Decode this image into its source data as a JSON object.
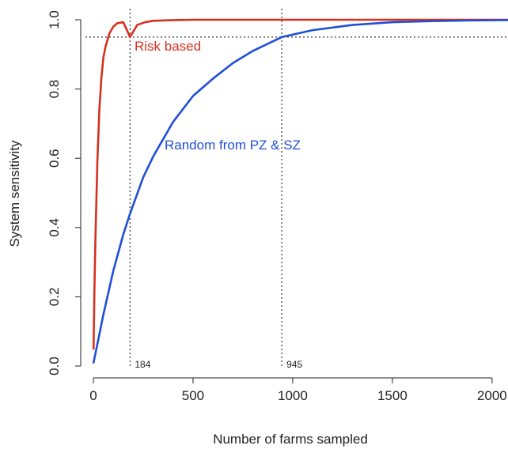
{
  "chart_data": {
    "type": "line",
    "title": "",
    "xlabel": "Number of farms sampled",
    "ylabel": "System sensitivity",
    "xlim": [
      0,
      2080
    ],
    "ylim": [
      0,
      1.0
    ],
    "x_ticks": [
      0,
      500,
      1000,
      1500,
      2000
    ],
    "y_ticks": [
      0.0,
      0.2,
      0.4,
      0.6,
      0.8,
      1.0
    ],
    "x_tick_labels": [
      "0",
      "500",
      "1000",
      "1500",
      "2000"
    ],
    "y_tick_labels": [
      "0.0",
      "0.2",
      "0.4",
      "0.6",
      "0.8",
      "1.0"
    ],
    "grid": false,
    "series": [
      {
        "name": "Risk based",
        "color": "#d7301f",
        "x": [
          1,
          5,
          10,
          20,
          30,
          40,
          50,
          60,
          80,
          100,
          120,
          150,
          184,
          220,
          260,
          300,
          400,
          500,
          700,
          1000,
          1500,
          2080
        ],
        "y": [
          0.05,
          0.21,
          0.36,
          0.59,
          0.74,
          0.83,
          0.89,
          0.92,
          0.96,
          0.98,
          0.99,
          0.993,
          0.95,
          0.985,
          0.993,
          0.997,
          0.999,
          1.0,
          1.0,
          1.0,
          1.0,
          1.0
        ]
      },
      {
        "name": "Random from PZ & SZ",
        "color": "#1f4fd6",
        "x": [
          1,
          25,
          50,
          100,
          150,
          184,
          250,
          300,
          400,
          500,
          600,
          700,
          800,
          945,
          1100,
          1300,
          1500,
          1700,
          1900,
          2080
        ],
        "y": [
          0.01,
          0.077,
          0.148,
          0.275,
          0.38,
          0.44,
          0.545,
          0.605,
          0.705,
          0.78,
          0.83,
          0.875,
          0.91,
          0.95,
          0.97,
          0.985,
          0.993,
          0.996,
          0.998,
          0.999
        ]
      }
    ],
    "reference_lines": {
      "horizontal": [
        0.95
      ],
      "vertical": [
        184,
        945
      ]
    },
    "annotations": [
      {
        "text": "184",
        "x": 184
      },
      {
        "text": "945",
        "x": 945
      }
    ]
  }
}
